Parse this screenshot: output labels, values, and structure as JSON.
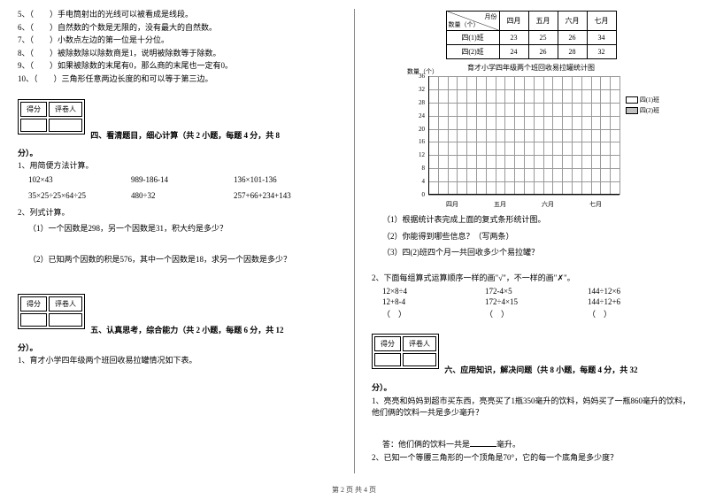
{
  "left": {
    "judgments": [
      "5、（　　）手电筒射出的光线可以被看成是线段。",
      "6、（　　）自然数的个数是无限的，没有最大的自然数。",
      "7、（　　）小数点左边的第一位是十分位。",
      "8、（　　）被除数除以除数商是1，说明被除数等于除数。",
      "9、（　　）如果被除数的末尾有0，那么商的末尾也一定有0。",
      "10、（　　）三角形任意两边长度的和可以等于第三边。"
    ],
    "score_labels": [
      "得分",
      "评卷人"
    ],
    "section4_title": "四、看清题目，细心计算（共 2 小题，每题 4 分，共 8",
    "section4_cont": "分）。",
    "q4_1": "1、用简便方法计算。",
    "calc1": [
      "102×43",
      "989-186-14",
      "136×101-136"
    ],
    "calc2": [
      "35×25÷25×64÷25",
      "480÷32",
      "257+66+234+143"
    ],
    "q4_2": "2、列式计算。",
    "q4_2_1": "（1）一个因数是298，另一个因数是31，积大约是多少？",
    "q4_2_2": "（2）已知两个因数的积是576，其中一个因数是18，求另一个因数是多少？",
    "section5_title": "五、认真思考，综合能力（共 2 小题，每题 6 分，共 12",
    "section5_cont": "分）。",
    "q5_1": "1、育才小学四年级两个班回收易拉罐情况如下表。"
  },
  "right": {
    "table": {
      "diag_top": "月份",
      "diag_bottom": "数量（个）",
      "months": [
        "四月",
        "五月",
        "六月",
        "七月"
      ],
      "rows": [
        {
          "label": "四(1)班",
          "vals": [
            "23",
            "25",
            "26",
            "34"
          ]
        },
        {
          "label": "四(2)班",
          "vals": [
            "24",
            "26",
            "28",
            "32"
          ]
        }
      ]
    },
    "chart": {
      "title": "育才小学四年级两个班回收易拉罐统计图",
      "y_title": "数量（个）",
      "y_ticks": [
        "0",
        "4",
        "8",
        "12",
        "16",
        "20",
        "24",
        "28",
        "32",
        "36"
      ],
      "x_ticks": [
        "四月",
        "五月",
        "六月",
        "七月"
      ],
      "legend": [
        "四(1)班",
        "四(2)班"
      ],
      "colors": [
        "#ffffff",
        "#c0c0c0"
      ],
      "grid_color": "#999999",
      "y_max": 36,
      "y_step": 4
    },
    "q5_subs": [
      "（1）根据统计表完成上面的复式条形统计图。",
      "（2）你能得到哪些信息？（写两条）",
      "（3）四(2)班四个月一共回收多少个易拉罐？"
    ],
    "q5_2": "2、下面每组算式运算顺序一样的画\"√\"，不一样的画\"✗\"。",
    "order1": [
      "12×8÷4",
      "172-4×5",
      "144÷12×6"
    ],
    "order2": [
      "12+8-4",
      "172÷4×15",
      "144÷12+6"
    ],
    "order3": [
      "（　）",
      "（　）",
      "（　）"
    ],
    "section6_title": "六、应用知识，解决问题（共 8 小题，每题 4 分，共 32",
    "section6_cont": "分）。",
    "q6_1": "1、亮亮和妈妈到超市买东西，亮亮买了1瓶350毫升的饮料，妈妈买了一瓶860毫升的饮料，他们俩的饮料一共是多少毫升？",
    "q6_1_ans": "答：他们俩的饮料一共是",
    "q6_1_unit": "毫升。",
    "q6_2": "2、已知一个等腰三角形的一个顶角是70°，它的每一个底角是多少度？"
  },
  "footer": "第 2 页 共 4 页"
}
